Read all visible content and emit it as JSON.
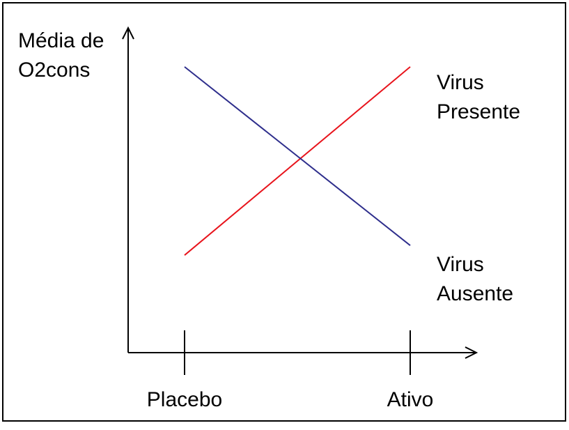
{
  "chart_data": {
    "type": "line",
    "categories": [
      "Placebo",
      "Ativo"
    ],
    "ylabel": [
      "Média de",
      "O2cons"
    ],
    "xlabel": "",
    "title": "",
    "ylim": [
      0,
      100
    ],
    "grid": false,
    "series": [
      {
        "name": [
          "Virus",
          "Presente"
        ],
        "values": [
          30,
          88
        ],
        "color": "#e8141c"
      },
      {
        "name": [
          "Virus",
          "Ausente"
        ],
        "values": [
          88,
          33
        ],
        "color": "#2e2e8c"
      }
    ]
  }
}
